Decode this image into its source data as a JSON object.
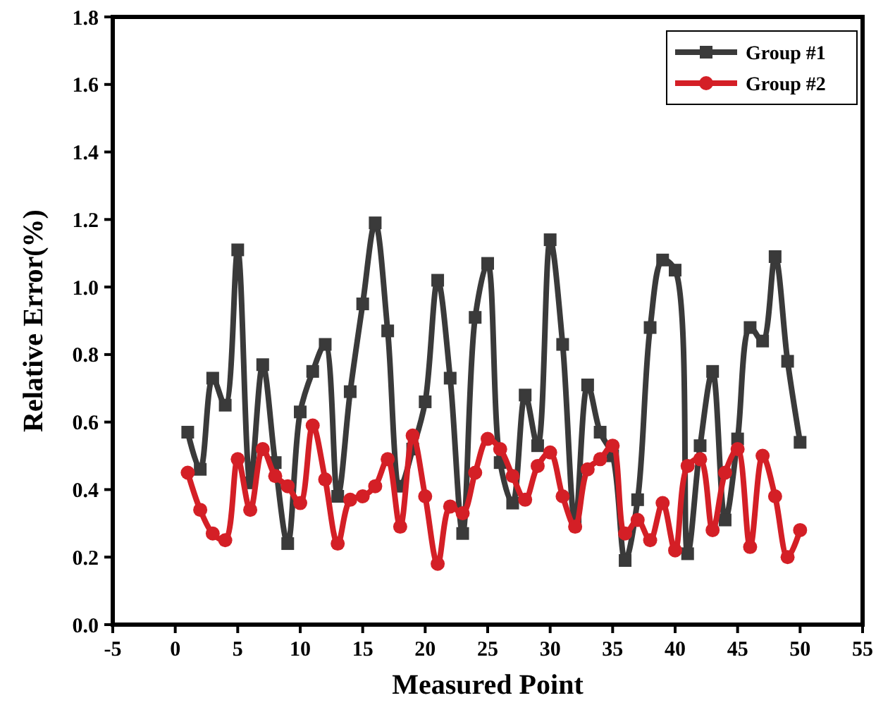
{
  "chart_data": {
    "type": "line",
    "xlabel": "Measured Point",
    "ylabel": "Relative Error(%)",
    "x": [
      1,
      2,
      3,
      4,
      5,
      6,
      7,
      8,
      9,
      10,
      11,
      12,
      13,
      14,
      15,
      16,
      17,
      18,
      19,
      20,
      21,
      22,
      23,
      24,
      25,
      26,
      27,
      28,
      29,
      30,
      31,
      32,
      33,
      34,
      35,
      36,
      37,
      38,
      39,
      40,
      41,
      42,
      43,
      44,
      45,
      46,
      47,
      48,
      49,
      50
    ],
    "series": [
      {
        "name": "Group #1",
        "color": "#3a3a3a",
        "marker": "square",
        "values": [
          0.57,
          0.46,
          0.73,
          0.65,
          1.11,
          0.42,
          0.77,
          0.48,
          0.24,
          0.63,
          0.75,
          0.83,
          0.38,
          0.69,
          0.95,
          1.19,
          0.87,
          0.41,
          0.52,
          0.66,
          1.02,
          0.73,
          0.27,
          0.91,
          1.07,
          0.48,
          0.36,
          0.68,
          0.53,
          1.14,
          0.83,
          0.3,
          0.71,
          0.57,
          0.5,
          0.19,
          0.37,
          0.88,
          1.08,
          1.05,
          0.21,
          0.53,
          0.75,
          0.31,
          0.55,
          0.88,
          0.84,
          1.09,
          0.78,
          0.54
        ]
      },
      {
        "name": "Group #2",
        "color": "#d41f26",
        "marker": "circle",
        "values": [
          0.45,
          0.34,
          0.27,
          0.25,
          0.49,
          0.34,
          0.52,
          0.44,
          0.41,
          0.36,
          0.59,
          0.43,
          0.24,
          0.37,
          0.38,
          0.41,
          0.49,
          0.29,
          0.56,
          0.38,
          0.18,
          0.35,
          0.33,
          0.45,
          0.55,
          0.52,
          0.44,
          0.37,
          0.47,
          0.51,
          0.38,
          0.29,
          0.46,
          0.49,
          0.53,
          0.27,
          0.31,
          0.25,
          0.36,
          0.22,
          0.47,
          0.49,
          0.28,
          0.45,
          0.52,
          0.23,
          0.5,
          0.38,
          0.2,
          0.28
        ]
      }
    ],
    "xlim": [
      -5,
      55
    ],
    "xticks": [
      -5,
      0,
      5,
      10,
      15,
      20,
      25,
      30,
      35,
      40,
      45,
      50,
      55
    ],
    "ylim": [
      0,
      1.8
    ],
    "yticks": [
      {
        "value": 0,
        "label": "0.0"
      },
      {
        "value": 0.2,
        "label": "0.2"
      },
      {
        "value": 0.4,
        "label": "0.4"
      },
      {
        "value": 0.6,
        "label": "0.6"
      },
      {
        "value": 0.8,
        "label": "0.8"
      },
      {
        "value": 1.0,
        "label": "1.0"
      },
      {
        "value": 1.2,
        "label": "1.2"
      },
      {
        "value": 1.4,
        "label": "1.4"
      },
      {
        "value": 1.6,
        "label": "1.6"
      },
      {
        "value": 1.8,
        "label": "1.8"
      }
    ],
    "legend": "top right",
    "grid": false,
    "line_style": "solid"
  }
}
